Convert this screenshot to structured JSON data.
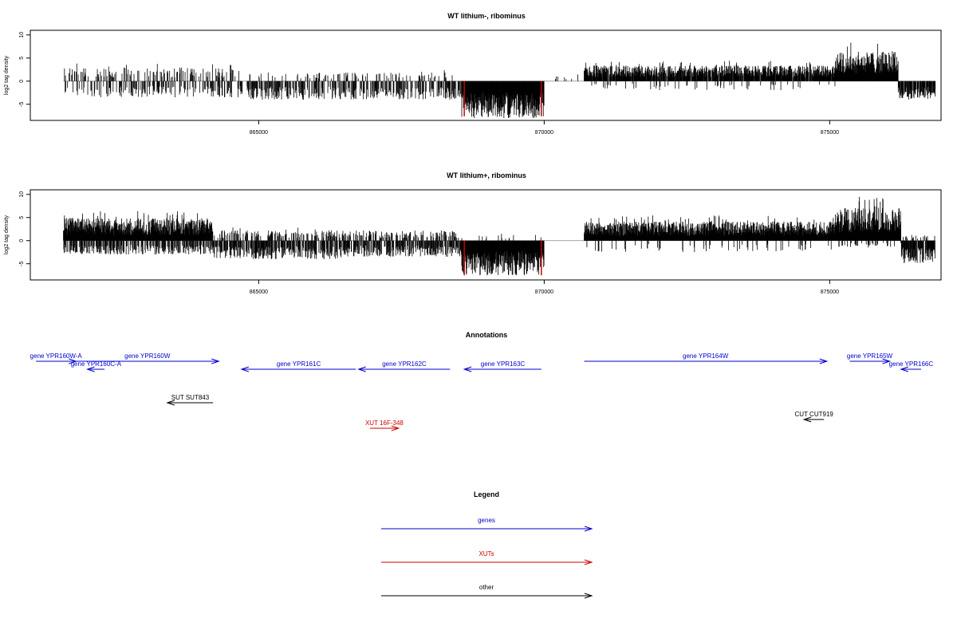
{
  "chart_data": [
    {
      "type": "bar",
      "title": "WT lithium-, ribominus",
      "ylabel": "log2 tag density",
      "xlim": [
        861000,
        876950
      ],
      "ylim": [
        -8.5,
        11
      ],
      "yticks": [
        -5,
        0,
        5,
        10
      ],
      "xticks": [
        865000,
        870000,
        875000
      ],
      "xtick_labels": [
        "865000",
        "870000",
        "875000"
      ],
      "ytick_labels": [
        "-5",
        "0",
        "5",
        "10"
      ],
      "bar_color": "#000000",
      "highlight_color": "#cc0000",
      "series": [
        {
          "segments": [
            {
              "from": 861580,
              "to": 864800,
              "pos_max": 4,
              "pos_density": 0.25,
              "neg_min": -3.5,
              "neg_density": 0.28
            },
            {
              "from": 864800,
              "to": 868550,
              "pos_max": 2.5,
              "pos_density": 0.12,
              "neg_min": -4,
              "neg_density": 0.45
            },
            {
              "from": 868550,
              "to": 870000,
              "pos_max": 0,
              "pos_density": 0,
              "neg_min": -8,
              "neg_density": 1
            },
            {
              "from": 870000,
              "to": 870700,
              "pos_max": 2,
              "pos_density": 0.05,
              "neg_min": 0,
              "neg_density": 0
            },
            {
              "from": 870700,
              "to": 875100,
              "pos_max": 4.5,
              "pos_density": 0.9,
              "neg_min": -2,
              "neg_density": 0.05
            },
            {
              "from": 875100,
              "to": 876200,
              "pos_max": 8.5,
              "pos_density": 1,
              "neg_min": 0,
              "neg_density": 0
            },
            {
              "from": 876200,
              "to": 876850,
              "pos_max": 0,
              "pos_density": 0,
              "neg_min": -4,
              "neg_density": 0.8
            }
          ]
        }
      ],
      "highlights": [
        {
          "x": 868600,
          "y": -7.6
        },
        {
          "x": 869950,
          "y": -7.6
        }
      ]
    },
    {
      "type": "bar",
      "title": "WT lithium+, ribominus",
      "ylabel": "log2 tag density",
      "xlim": [
        861000,
        876950
      ],
      "ylim": [
        -8.5,
        11
      ],
      "yticks": [
        -5,
        0,
        5,
        10
      ],
      "xticks": [
        865000,
        870000,
        875000
      ],
      "xtick_labels": [
        "865000",
        "870000",
        "875000"
      ],
      "ytick_labels": [
        "-5",
        "0",
        "5",
        "10"
      ],
      "bar_color": "#000000",
      "highlight_color": "#cc0000",
      "series": [
        {
          "segments": [
            {
              "from": 861580,
              "to": 864200,
              "pos_max": 6.5,
              "pos_density": 1,
              "neg_min": -3,
              "neg_density": 0.5
            },
            {
              "from": 864200,
              "to": 866500,
              "pos_max": 3,
              "pos_density": 0.35,
              "neg_min": -4,
              "neg_density": 0.6
            },
            {
              "from": 866500,
              "to": 868550,
              "pos_max": 3,
              "pos_density": 0.3,
              "neg_min": -3.5,
              "neg_density": 0.55
            },
            {
              "from": 868550,
              "to": 870000,
              "pos_max": 2,
              "pos_density": 0.05,
              "neg_min": -7.5,
              "neg_density": 1
            },
            {
              "from": 870000,
              "to": 870700,
              "pos_max": 0,
              "pos_density": 0,
              "neg_min": 0,
              "neg_density": 0
            },
            {
              "from": 870700,
              "to": 875100,
              "pos_max": 5.5,
              "pos_density": 1,
              "neg_min": -2.5,
              "neg_density": 0.08
            },
            {
              "from": 875100,
              "to": 876250,
              "pos_max": 9.5,
              "pos_density": 1,
              "neg_min": -1.5,
              "neg_density": 0.2
            },
            {
              "from": 876250,
              "to": 876850,
              "pos_max": 1.5,
              "pos_density": 0.2,
              "neg_min": -5,
              "neg_density": 0.9
            }
          ]
        }
      ],
      "highlights": [
        {
          "x": 868600,
          "y": -7.5
        },
        {
          "x": 869950,
          "y": -7.5
        }
      ]
    }
  ],
  "annotations": {
    "title": "Annotations",
    "xlim": [
      861000,
      876950
    ],
    "features": [
      {
        "label": "gene YPR160W-A",
        "start": 861100,
        "end": 861800,
        "strand": "+",
        "kind": "gene",
        "row": 0
      },
      {
        "label": "gene YPR160W",
        "start": 861800,
        "end": 864300,
        "strand": "+",
        "kind": "gene",
        "row": 0
      },
      {
        "label": "gene YPR160C-A",
        "start": 862300,
        "end": 862000,
        "strand": "-",
        "kind": "gene",
        "row": 1
      },
      {
        "label": "gene YPR161C",
        "start": 866700,
        "end": 864700,
        "strand": "-",
        "kind": "gene",
        "row": 1
      },
      {
        "label": "gene YPR162C",
        "start": 868350,
        "end": 866750,
        "strand": "-",
        "kind": "gene",
        "row": 1
      },
      {
        "label": "gene YPR163C",
        "start": 869950,
        "end": 868600,
        "strand": "-",
        "kind": "gene",
        "row": 1
      },
      {
        "label": "gene YPR164W",
        "start": 870700,
        "end": 874950,
        "strand": "+",
        "kind": "gene",
        "row": 0
      },
      {
        "label": "gene YPR165W",
        "start": 875350,
        "end": 876050,
        "strand": "+",
        "kind": "gene",
        "row": 0
      },
      {
        "label": "gene YPR166C",
        "start": 876600,
        "end": 876250,
        "strand": "-",
        "kind": "gene",
        "row": 1
      },
      {
        "label": "SUT SUT843",
        "start": 864200,
        "end": 863400,
        "strand": "-",
        "kind": "other",
        "row": 2
      },
      {
        "label": "CUT CUT919",
        "start": 874900,
        "end": 874550,
        "strand": "-",
        "kind": "other",
        "row": 3
      },
      {
        "label": "XUT 16F-348",
        "start": 866950,
        "end": 867450,
        "strand": "+",
        "kind": "xut",
        "row": 4
      }
    ]
  },
  "legend": {
    "title": "Legend",
    "items": [
      {
        "label": "genes",
        "kind": "gene"
      },
      {
        "label": "XUTs",
        "kind": "xut"
      },
      {
        "label": "other",
        "kind": "other"
      }
    ]
  },
  "colors": {
    "gene": "#0000cc",
    "xut": "#cc0000",
    "other": "#000000"
  }
}
